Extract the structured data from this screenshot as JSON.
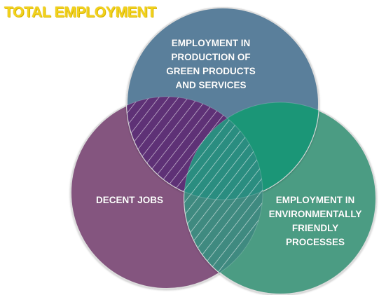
{
  "title": "TOTAL EMPLOYMENT",
  "circles": {
    "top": {
      "lines": [
        "EMPLOYMENT IN",
        "PRODUCTION OF",
        "GREEN PRODUCTS",
        "AND SERVICES"
      ],
      "color": "#5a7f9b"
    },
    "left": {
      "lines": [
        "DECENT JOBS"
      ],
      "color": "#84547f"
    },
    "right": {
      "lines": [
        "EMPLOYMENT IN",
        "ENVIRONMENTALLY",
        "FRIENDLY",
        "PROCESSES"
      ],
      "color": "#4b9c83"
    }
  },
  "colors": {
    "title": "#f2d21c",
    "overlap_top_left": "#5e3176",
    "overlap_top_right": "#1b9677",
    "overlap_center": "#2a8d80",
    "hatch": "#ffffff"
  }
}
